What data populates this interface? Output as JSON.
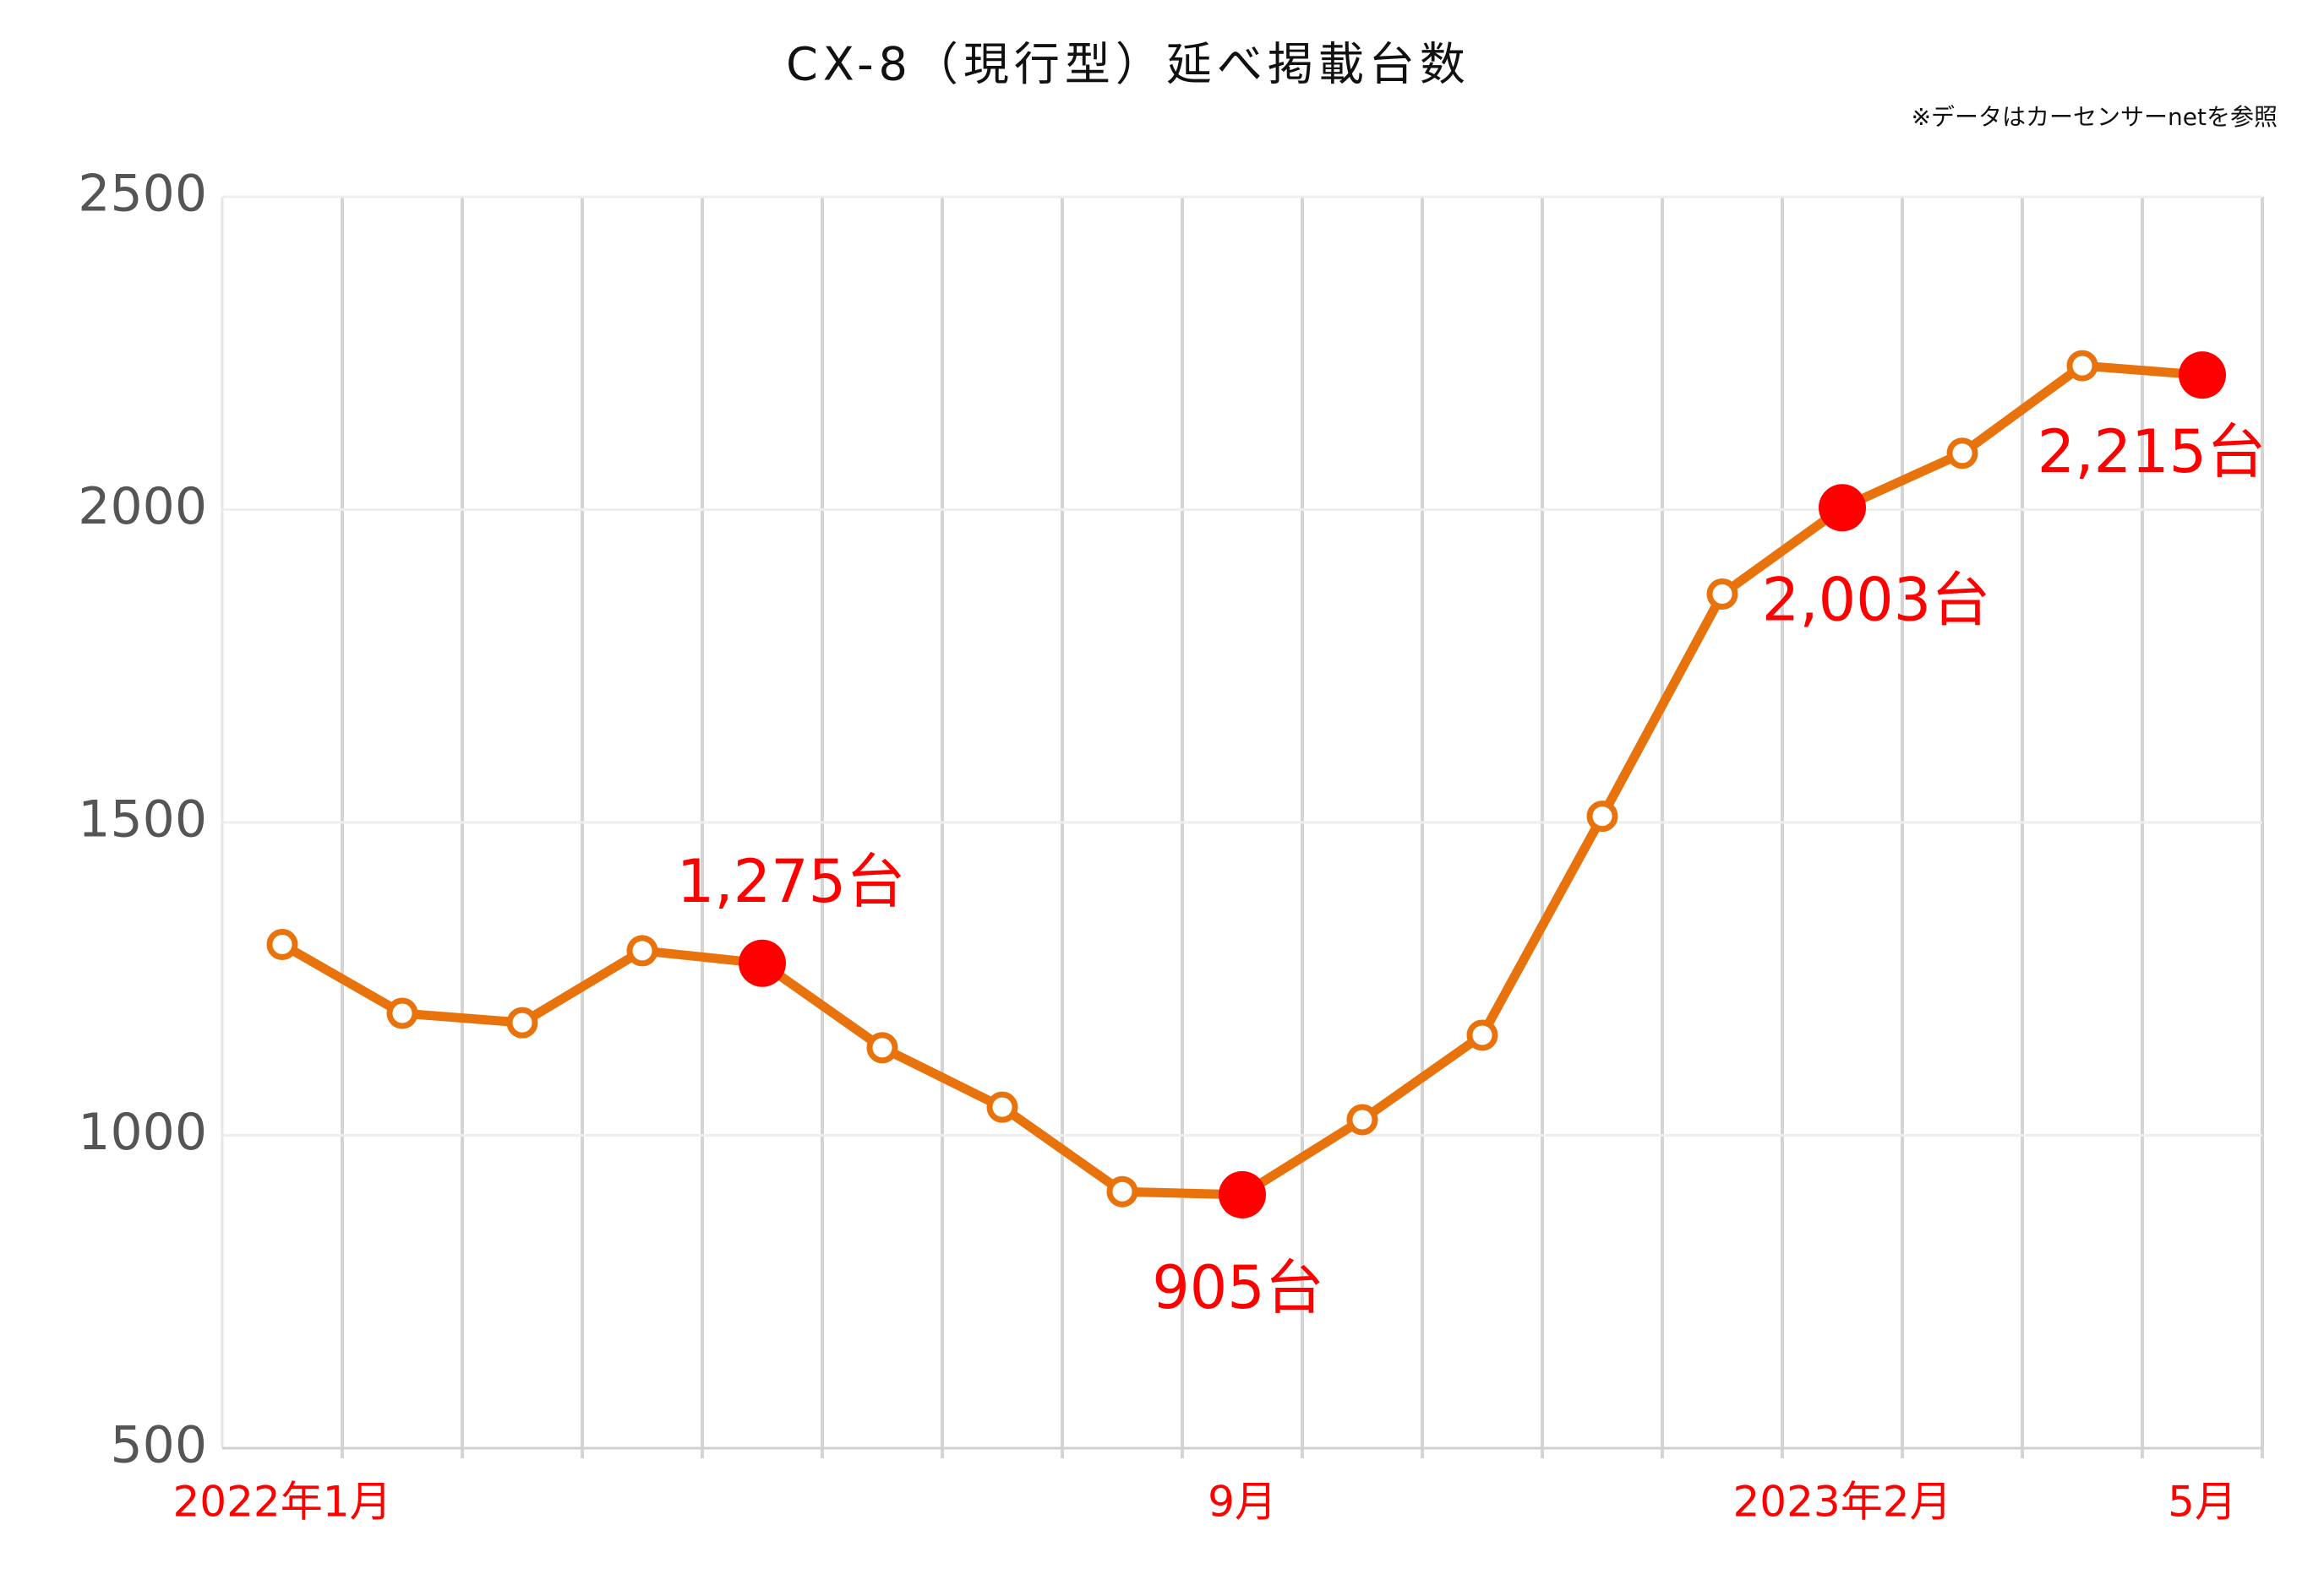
{
  "chart_data": {
    "type": "line",
    "title": "CX-8（現行型）延べ掲載台数",
    "note": "※データはカーセンサーnetを参照",
    "categories": [
      "2022年1月",
      null,
      null,
      null,
      null,
      null,
      null,
      null,
      "9月",
      null,
      null,
      null,
      null,
      "2023年2月",
      null,
      null,
      "5月"
    ],
    "series": [
      {
        "name": "延べ掲載台数",
        "color": "#e8730c",
        "highlight_color": "#ff0000",
        "values": [
          1305,
          1195,
          1180,
          1295,
          1275,
          1140,
          1045,
          910,
          905,
          1025,
          1160,
          1510,
          1865,
          2003,
          2090,
          2230,
          2215
        ],
        "value_labels": [
          null,
          null,
          null,
          null,
          "1,275台",
          null,
          null,
          null,
          "905台",
          null,
          null,
          null,
          null,
          "2,003台",
          null,
          null,
          "2,215台"
        ]
      }
    ],
    "ylim": [
      500,
      2500
    ],
    "yticks": [
      500,
      1000,
      1500,
      2000,
      2500
    ],
    "grid": true,
    "label_color": "#ff0000"
  }
}
